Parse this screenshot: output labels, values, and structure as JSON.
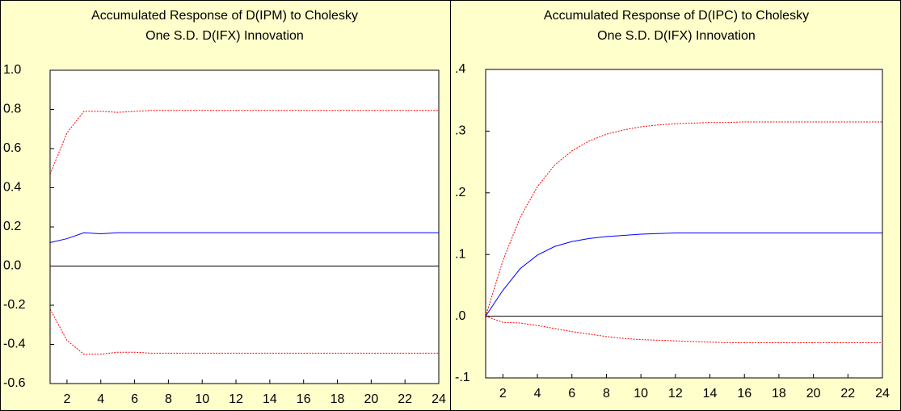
{
  "chart_data": [
    {
      "type": "line",
      "title": "Accumulated Response of D(IPM) to Cholesky",
      "subtitle": "One S.D. D(IFX) Innovation",
      "x": [
        1,
        2,
        3,
        4,
        5,
        6,
        7,
        8,
        9,
        10,
        11,
        12,
        13,
        14,
        15,
        16,
        17,
        18,
        19,
        20,
        21,
        22,
        23,
        24
      ],
      "xlim": [
        1,
        24
      ],
      "xticks": [
        2,
        4,
        6,
        8,
        10,
        12,
        14,
        16,
        18,
        20,
        22,
        24
      ],
      "ylim": [
        -0.6,
        1.0
      ],
      "yticks": [
        {
          "value": 1.0,
          "label": "1.0"
        },
        0.8,
        0.6,
        0.4,
        0.2,
        {
          "value": 0,
          "label": "0.0"
        },
        -0.2,
        -0.4,
        -0.6
      ],
      "series": [
        {
          "color": "#ff0000",
          "dashed": true,
          "values": [
            0.47,
            0.68,
            0.79,
            0.79,
            0.785,
            0.79,
            0.795,
            0.795,
            0.795,
            0.795,
            0.795,
            0.795,
            0.795,
            0.795,
            0.795,
            0.795,
            0.795,
            0.795,
            0.795,
            0.795,
            0.795,
            0.795,
            0.795,
            0.795
          ]
        },
        {
          "color": "#0000ff",
          "dashed": false,
          "values": [
            0.12,
            0.14,
            0.17,
            0.165,
            0.17,
            0.17,
            0.17,
            0.17,
            0.17,
            0.17,
            0.17,
            0.17,
            0.17,
            0.17,
            0.17,
            0.17,
            0.17,
            0.17,
            0.17,
            0.17,
            0.17,
            0.17,
            0.17,
            0.17
          ]
        },
        {
          "color": "#ff0000",
          "dashed": true,
          "values": [
            -0.22,
            -0.38,
            -0.45,
            -0.45,
            -0.44,
            -0.44,
            -0.445,
            -0.445,
            -0.445,
            -0.445,
            -0.445,
            -0.445,
            -0.445,
            -0.445,
            -0.445,
            -0.445,
            -0.445,
            -0.445,
            -0.445,
            -0.445,
            -0.445,
            -0.445,
            -0.445,
            -0.445
          ]
        }
      ]
    },
    {
      "type": "line",
      "title": "Accumulated Response of D(IPC) to Cholesky",
      "subtitle": "One S.D. D(IFX) Innovation",
      "x": [
        1,
        2,
        3,
        4,
        5,
        6,
        7,
        8,
        9,
        10,
        11,
        12,
        13,
        14,
        15,
        16,
        17,
        18,
        19,
        20,
        21,
        22,
        23,
        24
      ],
      "xlim": [
        1,
        24
      ],
      "xticks": [
        2,
        4,
        6,
        8,
        10,
        12,
        14,
        16,
        18,
        20,
        22,
        24
      ],
      "ylim": [
        -0.1,
        0.4
      ],
      "yticks": [
        {
          "value": 0.4,
          "label": ".4"
        },
        {
          "value": 0.3,
          "label": ".3"
        },
        {
          "value": 0.2,
          "label": ".2"
        },
        {
          "value": 0.1,
          "label": ".1"
        },
        {
          "value": 0,
          "label": ".0"
        },
        {
          "value": -0.1,
          "label": "-.1"
        }
      ],
      "series": [
        {
          "color": "#ff0000",
          "dashed": true,
          "values": [
            0,
            0.09,
            0.16,
            0.21,
            0.245,
            0.268,
            0.284,
            0.295,
            0.302,
            0.307,
            0.31,
            0.312,
            0.313,
            0.314,
            0.314,
            0.315,
            0.315,
            0.315,
            0.315,
            0.315,
            0.315,
            0.315,
            0.315,
            0.315
          ]
        },
        {
          "color": "#0000ff",
          "dashed": false,
          "values": [
            0,
            0.042,
            0.077,
            0.099,
            0.113,
            0.121,
            0.126,
            0.129,
            0.131,
            0.133,
            0.134,
            0.135,
            0.135,
            0.135,
            0.135,
            0.135,
            0.135,
            0.135,
            0.135,
            0.135,
            0.135,
            0.135,
            0.135,
            0.135
          ]
        },
        {
          "color": "#ff0000",
          "dashed": true,
          "values": [
            0,
            -0.01,
            -0.011,
            -0.015,
            -0.02,
            -0.025,
            -0.029,
            -0.033,
            -0.036,
            -0.038,
            -0.039,
            -0.04,
            -0.041,
            -0.042,
            -0.043,
            -0.043,
            -0.043,
            -0.043,
            -0.043,
            -0.043,
            -0.043,
            -0.043,
            -0.043,
            -0.043
          ]
        }
      ]
    }
  ]
}
